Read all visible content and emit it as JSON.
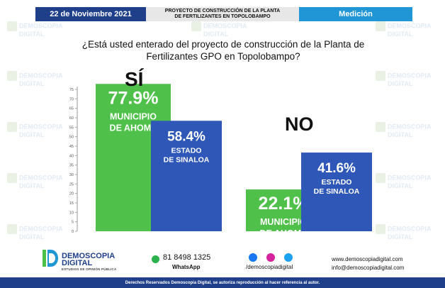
{
  "header": {
    "date": "22 de Noviembre 2021",
    "project_line1": "PROYECTO DE CONSTRUCCIÓN DE LA PLANTA",
    "project_line2": "DE FERTILIZANTES EN TOPOLOBAMPO",
    "section": "Medición"
  },
  "watermark": {
    "line1": "DEMOSCOPIA",
    "line2": "DIGITAL"
  },
  "question": {
    "line1": "¿Está usted enterado del proyecto de construcción de la Planta de",
    "line2": "Fertilizantes GPO en Topolobampo?"
  },
  "colors": {
    "green": "#4fc14a",
    "blue": "#2f57b7",
    "navy": "#1f3f8a",
    "accent": "#2196d6"
  },
  "chart_data": {
    "type": "bar",
    "ylim": [
      0,
      75
    ],
    "yticks": [
      "0",
      "5",
      "10",
      "15",
      "20",
      "25",
      "30",
      "35",
      "40",
      "45",
      "50",
      "55",
      "60",
      "65",
      "70",
      "75"
    ],
    "groups": [
      {
        "label": "SÍ",
        "bars": [
          {
            "value": 77.9,
            "value_label": "77.9%",
            "name_line1": "MUNICIPIO",
            "name_line2": "DE AHOME",
            "color": "#4fc14a"
          },
          {
            "value": 58.4,
            "value_label": "58.4%",
            "name_line1": "ESTADO",
            "name_line2": "DE SINALOA",
            "color": "#2f57b7"
          }
        ]
      },
      {
        "label": "NO",
        "bars": [
          {
            "value": 22.1,
            "value_label": "22.1%",
            "name_line1": "MUNICIPIO",
            "name_line2": "DE AHOME",
            "color": "#4fc14a"
          },
          {
            "value": 41.6,
            "value_label": "41.6%",
            "name_line1": "ESTADO",
            "name_line2": "DE SINALOA",
            "color": "#2f57b7"
          }
        ]
      }
    ]
  },
  "footer": {
    "brand_line1": "DEMOSCOPIA",
    "brand_line2": "DIGITAL",
    "brand_sub": "ESTUDIOS DE OPINIÓN PÚBLICA",
    "phone": "81 8498 1325",
    "whatsapp_label": "WhatsApp",
    "social_handle": "/demoscopiadigital",
    "website": "www.demoscopiadigital.com",
    "email": "info@demoscopiadigital.com",
    "copyright": "Derechos Reservados Demoscopia Digital, se autoriza reproducción al hacer referencia al autor."
  }
}
